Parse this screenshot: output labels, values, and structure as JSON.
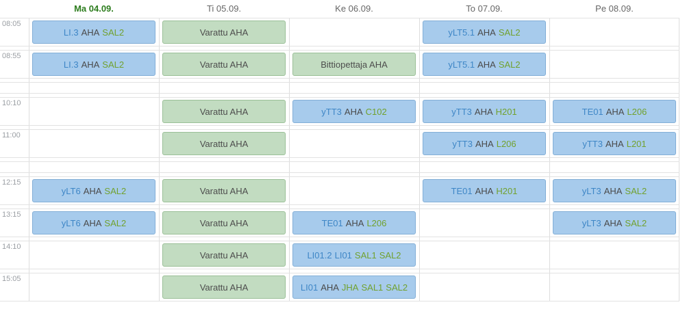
{
  "timetable": {
    "days": [
      {
        "label": "Ma 04.09.",
        "today": true
      },
      {
        "label": "Ti 05.09.",
        "today": false
      },
      {
        "label": "Ke 06.09.",
        "today": false
      },
      {
        "label": "To 07.09.",
        "today": false
      },
      {
        "label": "Pe 08.09.",
        "today": false
      }
    ],
    "rows": [
      {
        "time": "08:05",
        "kind": "lesson",
        "cells": [
          {
            "color": "blue",
            "parts": [
              {
                "text": "LI.3",
                "style": "course"
              },
              {
                "text": "AHA",
                "style": "teacher"
              },
              {
                "text": "SAL2",
                "style": "room"
              }
            ]
          },
          {
            "color": "green",
            "parts": [
              {
                "text": "Varattu AHA",
                "style": "plain"
              }
            ]
          },
          null,
          {
            "color": "blue",
            "parts": [
              {
                "text": "yLT5.1",
                "style": "course"
              },
              {
                "text": "AHA",
                "style": "teacher"
              },
              {
                "text": "SAL2",
                "style": "room"
              }
            ]
          },
          null
        ]
      },
      {
        "time": "08:55",
        "kind": "lesson",
        "cells": [
          {
            "color": "blue",
            "parts": [
              {
                "text": "LI.3",
                "style": "course"
              },
              {
                "text": "AHA",
                "style": "teacher"
              },
              {
                "text": "SAL2",
                "style": "room"
              }
            ]
          },
          {
            "color": "green",
            "parts": [
              {
                "text": "Varattu AHA",
                "style": "plain"
              }
            ]
          },
          {
            "color": "green",
            "parts": [
              {
                "text": "Bittiopettaja AHA",
                "style": "plain"
              }
            ]
          },
          {
            "color": "blue",
            "parts": [
              {
                "text": "yLT5.1",
                "style": "course"
              },
              {
                "text": "AHA",
                "style": "teacher"
              },
              {
                "text": "SAL2",
                "style": "room"
              }
            ]
          },
          null
        ]
      },
      {
        "time": "",
        "kind": "gap",
        "cells": [
          null,
          null,
          null,
          null,
          null
        ]
      },
      {
        "time": "10:10",
        "kind": "lesson",
        "cells": [
          null,
          {
            "color": "green",
            "parts": [
              {
                "text": "Varattu AHA",
                "style": "plain"
              }
            ]
          },
          {
            "color": "blue",
            "parts": [
              {
                "text": "yTT3",
                "style": "course"
              },
              {
                "text": "AHA",
                "style": "teacher"
              },
              {
                "text": "C102",
                "style": "room"
              }
            ]
          },
          {
            "color": "blue",
            "parts": [
              {
                "text": "yTT3",
                "style": "course"
              },
              {
                "text": "AHA",
                "style": "teacher"
              },
              {
                "text": "H201",
                "style": "room"
              }
            ]
          },
          {
            "color": "blue",
            "parts": [
              {
                "text": "TE01",
                "style": "course"
              },
              {
                "text": "AHA",
                "style": "teacher"
              },
              {
                "text": "L206",
                "style": "room"
              }
            ]
          }
        ]
      },
      {
        "time": "11:00",
        "kind": "lesson",
        "cells": [
          null,
          {
            "color": "green",
            "parts": [
              {
                "text": "Varattu AHA",
                "style": "plain"
              }
            ]
          },
          null,
          {
            "color": "blue",
            "parts": [
              {
                "text": "yTT3",
                "style": "course"
              },
              {
                "text": "AHA",
                "style": "teacher"
              },
              {
                "text": "L206",
                "style": "room"
              }
            ]
          },
          {
            "color": "blue",
            "parts": [
              {
                "text": "yTT3",
                "style": "course"
              },
              {
                "text": "AHA",
                "style": "teacher"
              },
              {
                "text": "L201",
                "style": "room"
              }
            ]
          }
        ]
      },
      {
        "time": "",
        "kind": "gap",
        "cells": [
          null,
          null,
          null,
          null,
          null
        ]
      },
      {
        "time": "12:15",
        "kind": "lesson",
        "cells": [
          {
            "color": "blue",
            "parts": [
              {
                "text": "yLT6",
                "style": "course"
              },
              {
                "text": "AHA",
                "style": "teacher"
              },
              {
                "text": "SAL2",
                "style": "room"
              }
            ]
          },
          {
            "color": "green",
            "parts": [
              {
                "text": "Varattu AHA",
                "style": "plain"
              }
            ]
          },
          null,
          {
            "color": "blue",
            "parts": [
              {
                "text": "TE01",
                "style": "course"
              },
              {
                "text": "AHA",
                "style": "teacher"
              },
              {
                "text": "H201",
                "style": "room"
              }
            ]
          },
          {
            "color": "blue",
            "parts": [
              {
                "text": "yLT3",
                "style": "course"
              },
              {
                "text": "AHA",
                "style": "teacher"
              },
              {
                "text": "SAL2",
                "style": "room"
              }
            ]
          }
        ]
      },
      {
        "time": "13:15",
        "kind": "lesson",
        "cells": [
          {
            "color": "blue",
            "parts": [
              {
                "text": "yLT6",
                "style": "course"
              },
              {
                "text": "AHA",
                "style": "teacher"
              },
              {
                "text": "SAL2",
                "style": "room"
              }
            ]
          },
          {
            "color": "green",
            "parts": [
              {
                "text": "Varattu AHA",
                "style": "plain"
              }
            ]
          },
          {
            "color": "blue",
            "parts": [
              {
                "text": "TE01",
                "style": "course"
              },
              {
                "text": "AHA",
                "style": "teacher"
              },
              {
                "text": "L206",
                "style": "room"
              }
            ]
          },
          null,
          {
            "color": "blue",
            "parts": [
              {
                "text": "yLT3",
                "style": "course"
              },
              {
                "text": "AHA",
                "style": "teacher"
              },
              {
                "text": "SAL2",
                "style": "room"
              }
            ]
          }
        ]
      },
      {
        "time": "14:10",
        "kind": "lesson",
        "cells": [
          null,
          {
            "color": "green",
            "parts": [
              {
                "text": "Varattu AHA",
                "style": "plain"
              }
            ]
          },
          {
            "color": "blue",
            "parts": [
              {
                "text": "LI01.2",
                "style": "course"
              },
              {
                "text": "LI01",
                "style": "course"
              },
              {
                "text": "SAL1",
                "style": "room"
              },
              {
                "text": "SAL2",
                "style": "room"
              }
            ]
          },
          null,
          null
        ]
      },
      {
        "time": "15:05",
        "kind": "lesson",
        "cells": [
          null,
          {
            "color": "green",
            "parts": [
              {
                "text": "Varattu AHA",
                "style": "plain"
              }
            ]
          },
          {
            "color": "blue",
            "parts": [
              {
                "text": "LI01",
                "style": "course"
              },
              {
                "text": "AHA",
                "style": "teacher"
              },
              {
                "text": "JHA",
                "style": "room"
              },
              {
                "text": "SAL1",
                "style": "room"
              },
              {
                "text": "SAL2",
                "style": "room"
              }
            ]
          },
          null,
          null
        ]
      }
    ]
  },
  "colors": {
    "blue_event_bg": "#a7cbec",
    "blue_event_border": "#82aed6",
    "green_event_bg": "#c2dcc1",
    "green_event_border": "#9abf97",
    "course_text": "#3e86c6",
    "teacher_text": "#4a4a4a",
    "room_text": "#71a12e",
    "plain_text": "#4d4d4d",
    "today_header_text": "#2d7d1e",
    "day_header_text": "#666666",
    "time_label_text": "#9a9ea3",
    "grid_line": "#dddddd"
  }
}
